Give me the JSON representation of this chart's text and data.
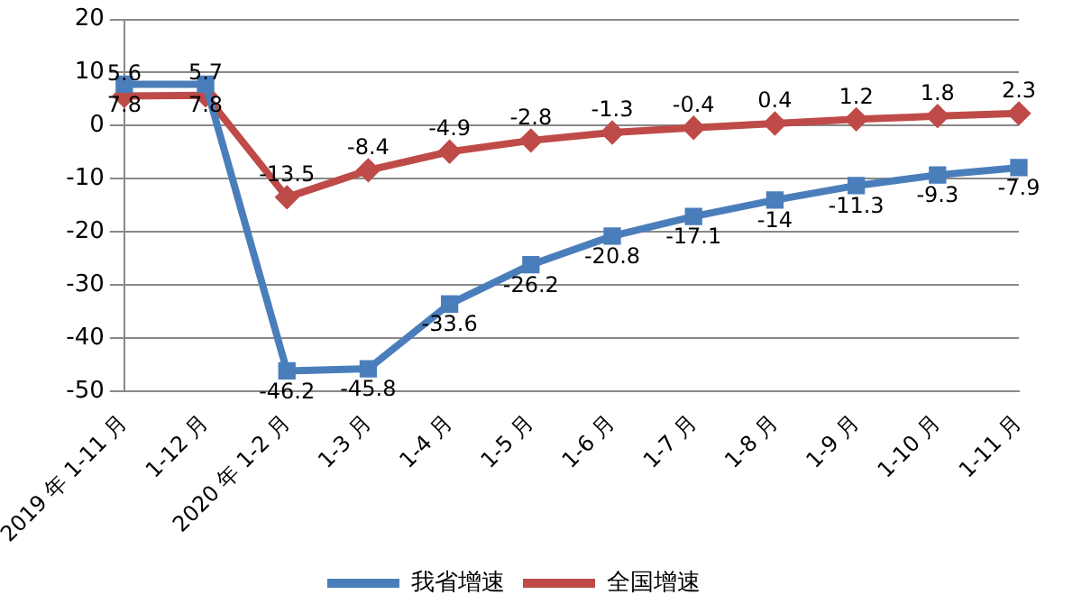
{
  "chart_data": {
    "type": "line",
    "categories": [
      "2019 年 1-11 月",
      "1-12 月",
      "2020 年 1-2 月",
      "1-3 月",
      "1-4 月",
      "1-5 月",
      "1-6 月",
      "1-7 月",
      "1-8 月",
      "1-9 月",
      "1-10 月",
      "1-11 月"
    ],
    "series": [
      {
        "name": "我省增速",
        "color": "#4a7ebb",
        "marker": "square",
        "values": [
          7.8,
          7.8,
          -46.2,
          -45.8,
          -33.6,
          -26.2,
          -20.8,
          -17.1,
          -14,
          -11.3,
          -9.3,
          -7.9
        ]
      },
      {
        "name": "全国增速",
        "color": "#be4b48",
        "marker": "diamond",
        "values": [
          5.6,
          5.7,
          -13.5,
          -8.4,
          -4.9,
          -2.8,
          -1.3,
          -0.4,
          0.4,
          1.2,
          1.8,
          2.3
        ]
      }
    ],
    "ylim": [
      -50,
      20
    ],
    "yticks": [
      -50,
      -40,
      -30,
      -20,
      -10,
      0,
      10,
      20
    ],
    "grid": "y",
    "legend": "bottom",
    "data_labels": true
  }
}
